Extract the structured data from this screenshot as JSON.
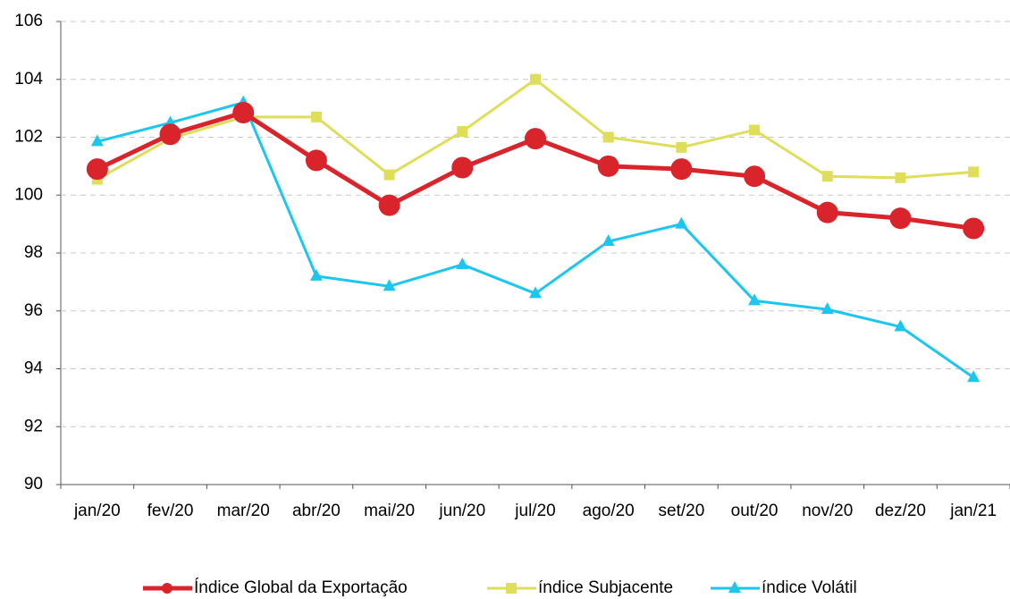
{
  "chart_data": {
    "type": "line",
    "categories": [
      "jan/20",
      "fev/20",
      "mar/20",
      "abr/20",
      "mai/20",
      "jun/20",
      "jul/20",
      "ago/20",
      "set/20",
      "out/20",
      "nov/20",
      "dez/20",
      "jan/21"
    ],
    "series": [
      {
        "name": "Índice Global da Exportação",
        "color": "#d9242c",
        "marker": "circle",
        "values": [
          100.9,
          102.1,
          102.85,
          101.2,
          99.65,
          100.95,
          101.95,
          101.0,
          100.9,
          100.65,
          99.4,
          99.2,
          98.85
        ]
      },
      {
        "name": "índice Subjacente",
        "color": "#dede5b",
        "marker": "square",
        "values": [
          100.55,
          101.95,
          102.7,
          102.7,
          100.7,
          102.2,
          104.0,
          102.0,
          101.65,
          102.25,
          100.65,
          100.6,
          100.8
        ]
      },
      {
        "name": "índice Volátil",
        "color": "#1cc6ee",
        "marker": "triangle",
        "values": [
          101.85,
          102.5,
          103.2,
          97.2,
          96.85,
          97.6,
          96.6,
          98.4,
          99.0,
          96.35,
          96.05,
          95.45,
          93.7
        ]
      }
    ],
    "ylim": [
      90,
      106
    ],
    "yticks": [
      90,
      92,
      94,
      96,
      98,
      100,
      102,
      104,
      106
    ],
    "grid": true,
    "legend": "bottom"
  }
}
